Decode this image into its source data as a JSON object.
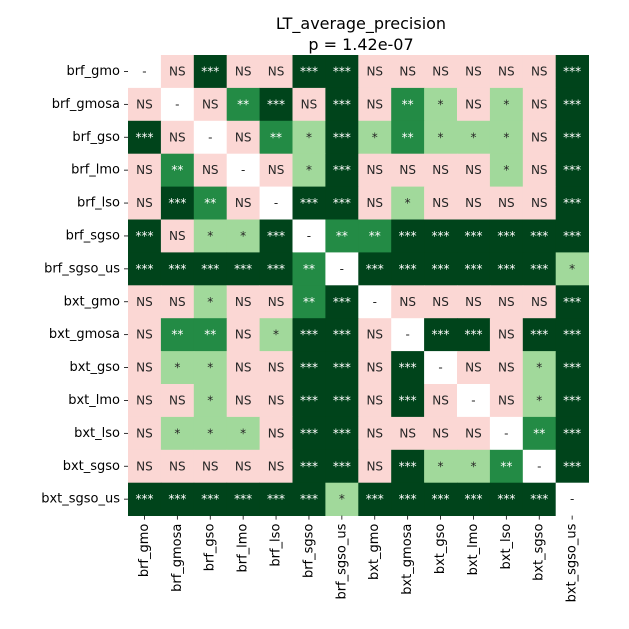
{
  "chart_data": {
    "type": "heatmap",
    "title": "LT_average_precision",
    "subtitle": "p = 1.42e-07",
    "labels": [
      "brf_gmo",
      "brf_gmosa",
      "brf_gso",
      "brf_lmo",
      "brf_lso",
      "brf_sgso",
      "brf_sgso_us",
      "bxt_gmo",
      "bxt_gmosa",
      "bxt_gso",
      "bxt_lmo",
      "bxt_lso",
      "bxt_sgso",
      "bxt_sgso_us"
    ],
    "matrix": [
      [
        "-",
        "NS",
        "***",
        "NS",
        "NS",
        "***",
        "***",
        "NS",
        "NS",
        "NS",
        "NS",
        "NS",
        "NS",
        "***"
      ],
      [
        "NS",
        "-",
        "NS",
        "**",
        "***",
        "NS",
        "***",
        "NS",
        "**",
        "*",
        "NS",
        "*",
        "NS",
        "***"
      ],
      [
        "***",
        "NS",
        "-",
        "NS",
        "**",
        "*",
        "***",
        "*",
        "**",
        "*",
        "*",
        "*",
        "NS",
        "***"
      ],
      [
        "NS",
        "**",
        "NS",
        "-",
        "NS",
        "*",
        "***",
        "NS",
        "NS",
        "NS",
        "NS",
        "*",
        "NS",
        "***"
      ],
      [
        "NS",
        "***",
        "**",
        "NS",
        "-",
        "***",
        "***",
        "NS",
        "*",
        "NS",
        "NS",
        "NS",
        "NS",
        "***"
      ],
      [
        "***",
        "NS",
        "*",
        "*",
        "***",
        "-",
        "**",
        "**",
        "***",
        "***",
        "***",
        "***",
        "***",
        "***"
      ],
      [
        "***",
        "***",
        "***",
        "***",
        "***",
        "**",
        "-",
        "***",
        "***",
        "***",
        "***",
        "***",
        "***",
        "*"
      ],
      [
        "NS",
        "NS",
        "*",
        "NS",
        "NS",
        "**",
        "***",
        "-",
        "NS",
        "NS",
        "NS",
        "NS",
        "NS",
        "***"
      ],
      [
        "NS",
        "**",
        "**",
        "NS",
        "*",
        "***",
        "***",
        "NS",
        "-",
        "***",
        "***",
        "NS",
        "***",
        "***"
      ],
      [
        "NS",
        "*",
        "*",
        "NS",
        "NS",
        "***",
        "***",
        "NS",
        "***",
        "-",
        "NS",
        "NS",
        "*",
        "***"
      ],
      [
        "NS",
        "NS",
        "*",
        "NS",
        "NS",
        "***",
        "***",
        "NS",
        "***",
        "NS",
        "-",
        "NS",
        "*",
        "***"
      ],
      [
        "NS",
        "*",
        "*",
        "*",
        "NS",
        "***",
        "***",
        "NS",
        "NS",
        "NS",
        "NS",
        "-",
        "**",
        "***"
      ],
      [
        "NS",
        "NS",
        "NS",
        "NS",
        "NS",
        "***",
        "***",
        "NS",
        "***",
        "*",
        "*",
        "**",
        "-",
        "***"
      ],
      [
        "***",
        "***",
        "***",
        "***",
        "***",
        "***",
        "*",
        "***",
        "***",
        "***",
        "***",
        "***",
        "***",
        "-"
      ]
    ],
    "colors": {
      "NS": "#fbd7d4",
      "*": "#a1d99b",
      "**": "#238b45",
      "***": "#00441b",
      "-": "#ffffff"
    },
    "text_colors": {
      "NS": "#262626",
      "*": "#262626",
      "**": "#ffffff",
      "***": "#ffffff",
      "-": "#262626"
    }
  }
}
